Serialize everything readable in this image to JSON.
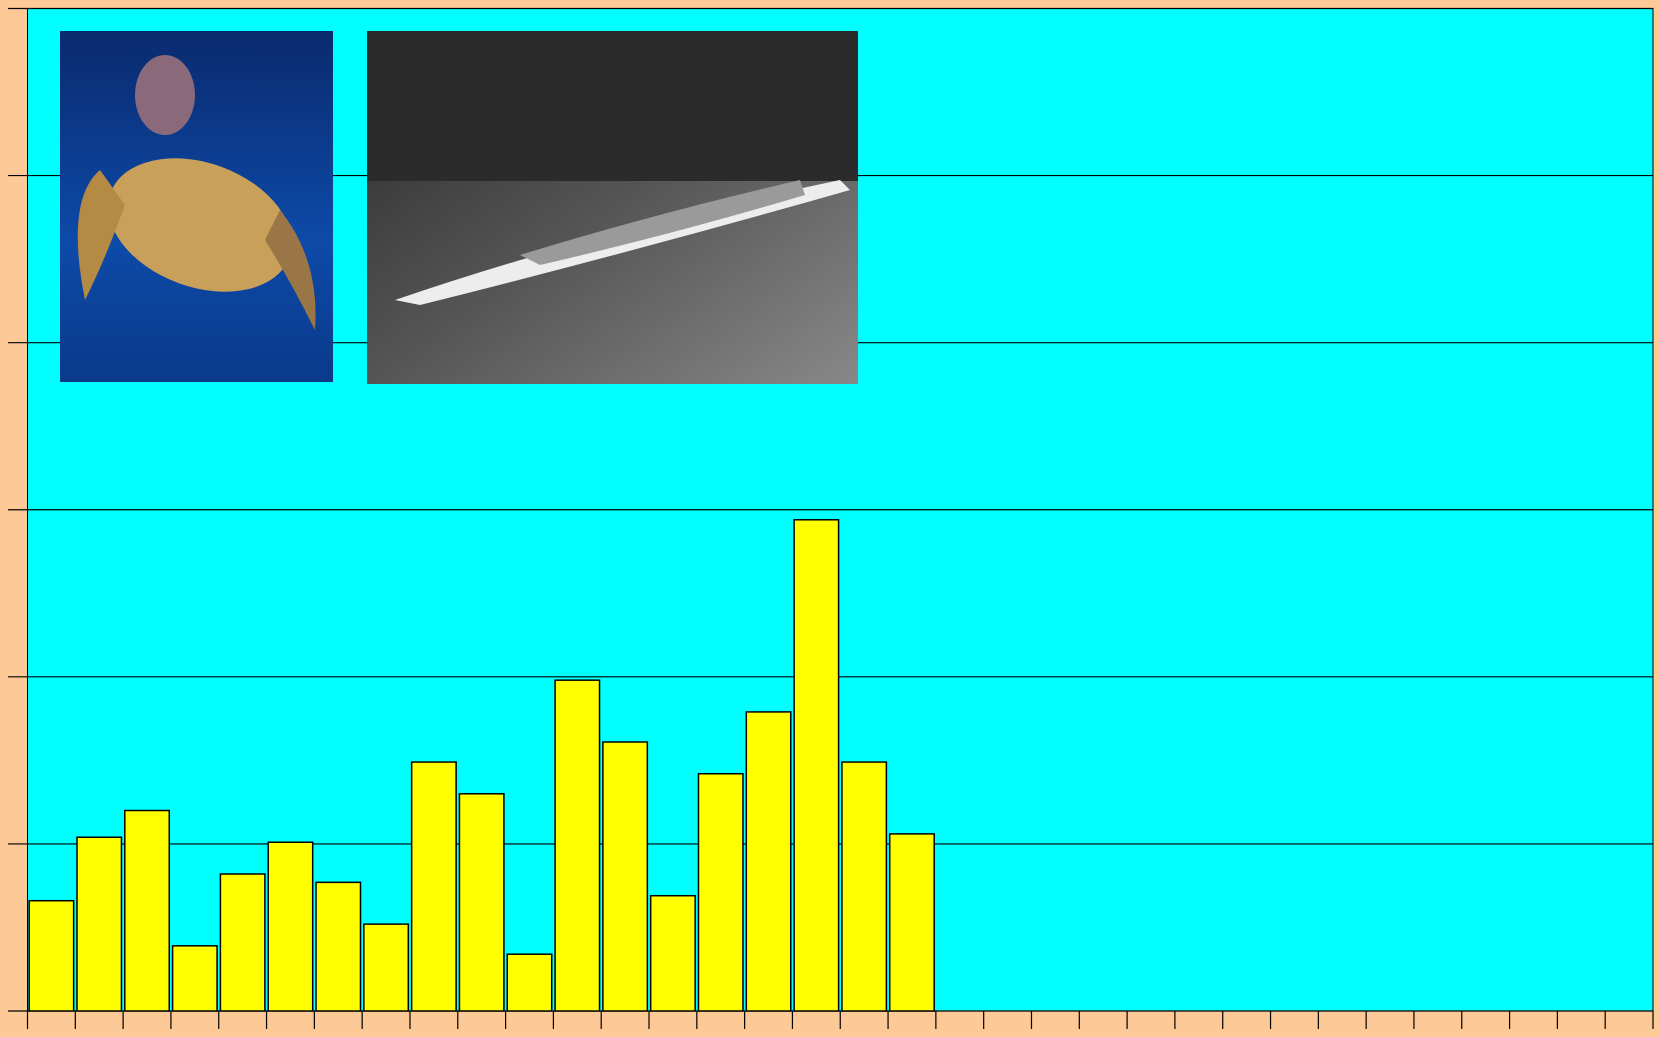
{
  "chart_data": {
    "type": "bar",
    "categories": [
      null,
      null,
      null,
      null,
      null,
      null,
      null,
      null,
      null,
      null,
      null,
      null,
      null,
      null,
      null,
      null,
      null,
      null,
      null,
      null,
      null,
      null,
      null,
      null,
      null,
      null,
      null,
      null,
      null,
      null,
      null,
      null,
      null,
      null
    ],
    "values": [
      0.66,
      1.04,
      1.2,
      0.39,
      0.82,
      1.01,
      0.77,
      0.52,
      1.49,
      1.3,
      0.34,
      1.98,
      1.61,
      0.69,
      1.42,
      1.79,
      2.94,
      1.49,
      1.06,
      null,
      null,
      null,
      null,
      null,
      null,
      null,
      null,
      null,
      null,
      null,
      null,
      null,
      null,
      null
    ],
    "color": "#ffff00",
    "ylim": [
      0,
      6
    ],
    "yticks": [
      0,
      1,
      2,
      3,
      4,
      5,
      6
    ],
    "grid": true
  }
}
